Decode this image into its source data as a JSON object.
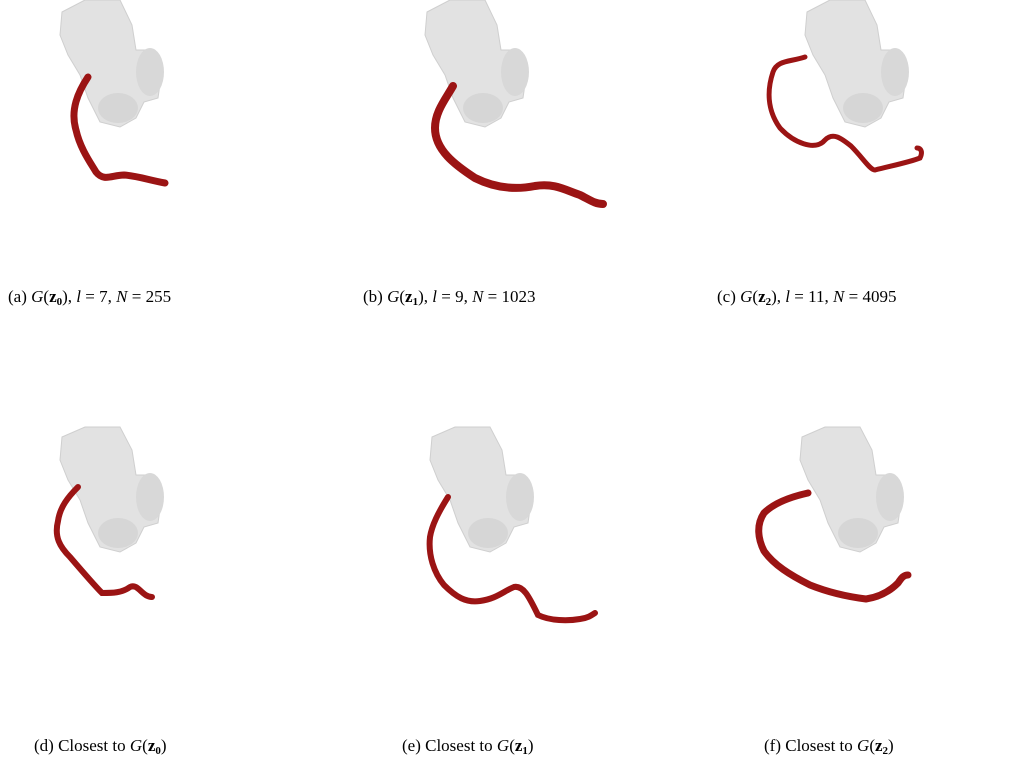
{
  "figure": {
    "panels": [
      {
        "id": "a",
        "label": "(a)",
        "func": "G",
        "z": "z",
        "zsub": "0",
        "l": "7",
        "N": "255",
        "kind": "generated"
      },
      {
        "id": "b",
        "label": "(b)",
        "func": "G",
        "z": "z",
        "zsub": "1",
        "l": "9",
        "N": "1023",
        "kind": "generated"
      },
      {
        "id": "c",
        "label": "(c)",
        "func": "G",
        "z": "z",
        "zsub": "2",
        "l": "11",
        "N": "4095",
        "kind": "generated"
      },
      {
        "id": "d",
        "label": "(d)",
        "text": "Closest to",
        "func": "G",
        "z": "z",
        "zsub": "0",
        "kind": "closest"
      },
      {
        "id": "e",
        "label": "(e)",
        "text": "Closest to",
        "func": "G",
        "z": "z",
        "zsub": "1",
        "kind": "closest"
      },
      {
        "id": "f",
        "label": "(f)",
        "text": "Closest to",
        "func": "G",
        "z": "z",
        "zsub": "2",
        "kind": "closest"
      }
    ],
    "colors": {
      "organ": "#e2e2e2",
      "organ_shadow": "#bdbdbd",
      "vessel": "#9b1414",
      "vessel_dark": "#6a0a0a"
    }
  }
}
